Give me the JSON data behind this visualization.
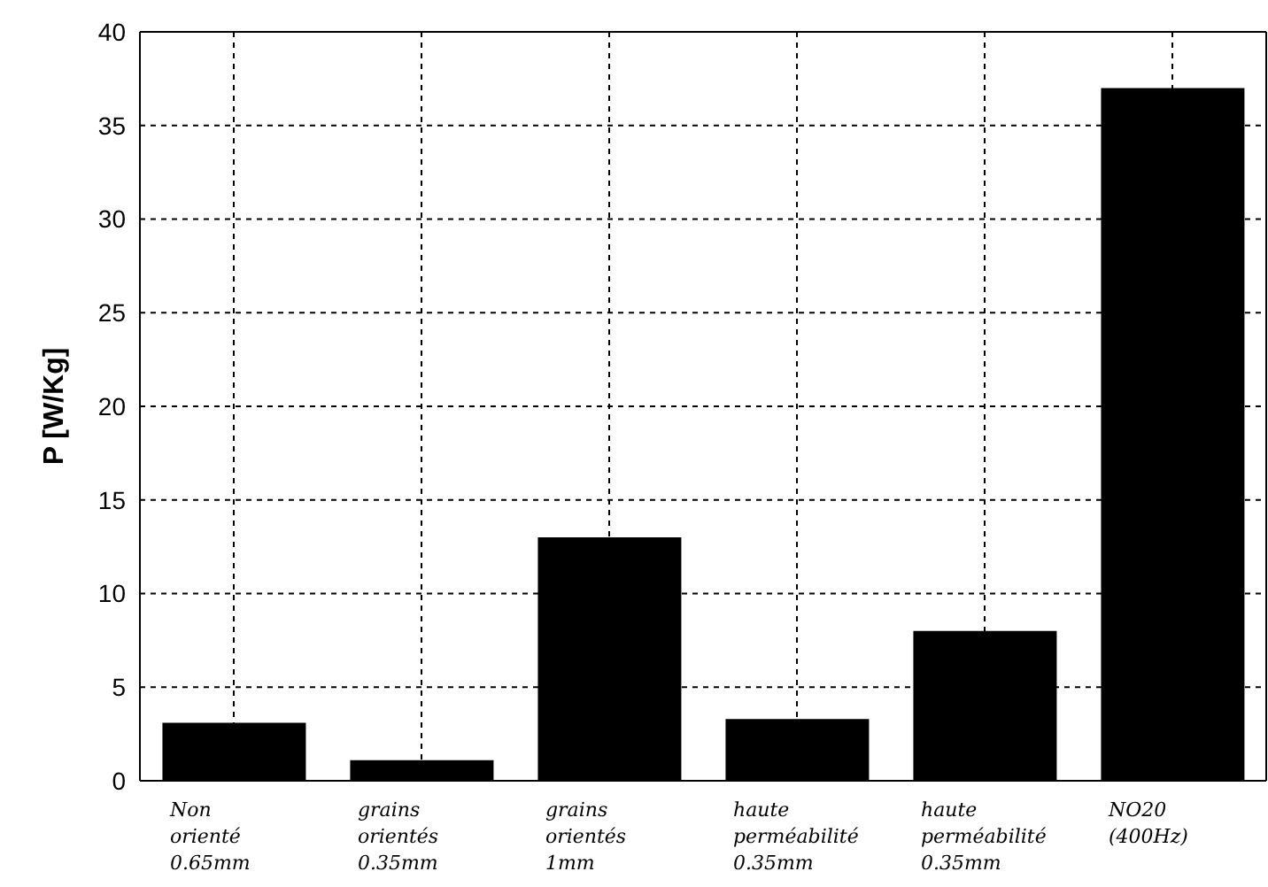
{
  "chart_data": {
    "type": "bar",
    "ylabel": "P [W/Kg]",
    "categories": [
      "Non\norienté\n0.65mm",
      "grains\norientés\n0.35mm",
      "grains\norientés\n1mm",
      "haute\nperméabilité\n0.35mm",
      "haute\nperméabilité\n0.35mm",
      "NO20\n(400Hz)"
    ],
    "values": [
      3.1,
      1.1,
      13,
      3.3,
      8,
      37
    ],
    "color": "#000000",
    "ylim": [
      0,
      40
    ],
    "yticks": [
      0,
      5,
      10,
      15,
      20,
      25,
      30,
      35,
      40
    ],
    "grid": true
  }
}
